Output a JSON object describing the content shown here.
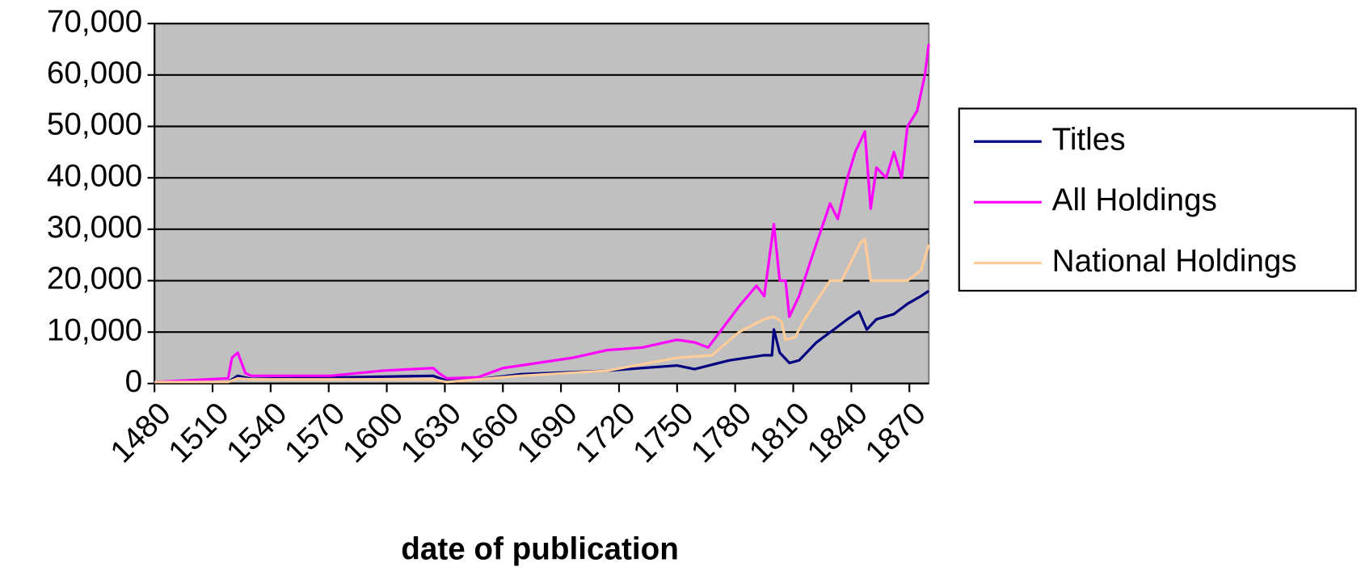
{
  "chart_data": {
    "type": "line",
    "x_label": "date of publication",
    "xlim": [
      1480,
      1880
    ],
    "xticks": [
      1480,
      1510,
      1540,
      1570,
      1600,
      1630,
      1660,
      1690,
      1720,
      1750,
      1780,
      1810,
      1840,
      1870
    ],
    "ylim": [
      0,
      70000
    ],
    "yticks": [
      0,
      {
        "value": 10000,
        "label": "10,000"
      },
      {
        "value": 20000,
        "label": "20,000"
      },
      {
        "value": 30000,
        "label": "30,000"
      },
      {
        "value": 40000,
        "label": "40,000"
      },
      {
        "value": 50000,
        "label": "50,000"
      },
      {
        "value": 60000,
        "label": "60,000"
      },
      {
        "value": 70000,
        "label": "70,000"
      }
    ],
    "grid": true,
    "legend": "right",
    "series": [
      {
        "name": "Titles",
        "color": "#000080",
        "x": [
          1480,
          1518,
          1523,
          1530,
          1624,
          1631,
          1647,
          1669,
          1714,
          1750,
          1759,
          1777,
          1795,
          1799,
          1800,
          1803,
          1808,
          1813,
          1822,
          1831,
          1838,
          1844,
          1848,
          1853,
          1862,
          1869,
          1876,
          1880
        ],
        "values": [
          300,
          300,
          1500,
          900,
          1500,
          500,
          800,
          1800,
          2500,
          3500,
          2800,
          4500,
          5500,
          5500,
          10500,
          6000,
          4000,
          4500,
          8000,
          10500,
          12500,
          14000,
          10500,
          12500,
          13500,
          15500,
          17000,
          18000
        ]
      },
      {
        "name": "All Holdings",
        "color": "#ff00ff",
        "x": [
          1480,
          1518,
          1520,
          1523,
          1527,
          1530,
          1571,
          1598,
          1624,
          1627,
          1631,
          1647,
          1660,
          1678,
          1696,
          1714,
          1732,
          1750,
          1759,
          1766,
          1768,
          1782,
          1791,
          1795,
          1800,
          1803,
          1806,
          1808,
          1813,
          1820,
          1829,
          1833,
          1838,
          1842,
          1847,
          1850,
          1853,
          1858,
          1862,
          1866,
          1869,
          1874,
          1878,
          1880
        ],
        "values": [
          300,
          1000,
          5000,
          6000,
          2000,
          1500,
          1500,
          2500,
          3000,
          2000,
          1000,
          1200,
          3000,
          4000,
          5000,
          6500,
          7000,
          8500,
          8000,
          7000,
          8000,
          15000,
          19000,
          17000,
          31000,
          20000,
          20000,
          13000,
          17000,
          25000,
          35000,
          32000,
          40000,
          45000,
          49000,
          34000,
          42000,
          40000,
          45000,
          40000,
          50000,
          53000,
          60000,
          66000
        ]
      },
      {
        "name": "National Holdings",
        "color": "#ffcc99",
        "x": [
          1480,
          1518,
          1523,
          1530,
          1624,
          1631,
          1669,
          1714,
          1750,
          1768,
          1782,
          1795,
          1800,
          1804,
          1806,
          1811,
          1815,
          1829,
          1835,
          1845,
          1847,
          1850,
          1862,
          1869,
          1876,
          1880
        ],
        "values": [
          300,
          300,
          1000,
          800,
          800,
          300,
          1500,
          2500,
          5000,
          5500,
          10000,
          12500,
          13000,
          12000,
          8500,
          9000,
          12000,
          20000,
          20000,
          27500,
          28000,
          20000,
          20000,
          20000,
          22000,
          27000
        ]
      }
    ]
  }
}
